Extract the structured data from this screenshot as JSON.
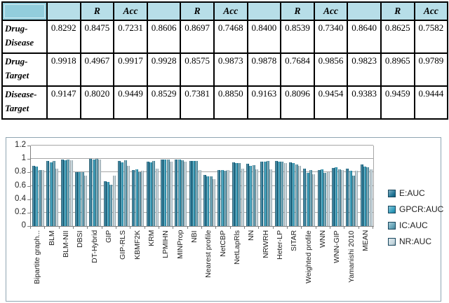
{
  "table": {
    "header": [
      "",
      "",
      "R",
      "Acc",
      "",
      "R",
      "Acc",
      "",
      "R",
      "Acc",
      "",
      "R",
      "Acc"
    ],
    "header_fill": "#B7DEE8",
    "corner_fill": "#92CDDC",
    "rows": [
      {
        "label": "Drug-\nDisease",
        "values": [
          "0.8292",
          "0.8475",
          "0.7231",
          "0.8606",
          "0.8697",
          "0.7468",
          "0.8400",
          "0.8539",
          "0.7340",
          "0.8640",
          "0.8625",
          "0.7582"
        ]
      },
      {
        "label": "Drug-\nTarget",
        "values": [
          "0.9918",
          "0.4967",
          "0.9917",
          "0.9928",
          "0.8575",
          "0.9873",
          "0.9878",
          "0.7684",
          "0.9856",
          "0.9823",
          "0.8965",
          "0.9789"
        ]
      },
      {
        "label": "Disease-\nTarget",
        "values": [
          "0.9147",
          "0.8020",
          "0.9449",
          "0.8529",
          "0.7381",
          "0.8850",
          "0.9163",
          "0.8096",
          "0.9454",
          "0.9383",
          "0.9459",
          "0.9444"
        ]
      }
    ]
  },
  "chart_data": {
    "type": "bar",
    "title": "",
    "xlabel": "",
    "ylabel": "",
    "ylim": [
      0,
      1.2
    ],
    "yticks": [
      0,
      0.2,
      0.4,
      0.6,
      0.8,
      1,
      1.2
    ],
    "grid": true,
    "legend_position": "right",
    "categories": [
      "Bipartite graph...",
      "BLM",
      "BLM-NII",
      "DBSI",
      "DT-Hybrid",
      "GIP",
      "GIP-RLS",
      "KBMF2K",
      "KRM",
      "LPMIHN",
      "MINProp",
      "NBI",
      "Nearest profile",
      "NetCBP",
      "NetLapRls",
      "NN",
      "NRWRH",
      "Heter-LP",
      "SITAR",
      "Weighted profile",
      "WNN",
      "WNN-GIP",
      "Yamanishi 2010",
      "MEAN"
    ],
    "series": [
      {
        "name": "E:AUC",
        "color": "#1C7293",
        "values": [
          0.9,
          0.97,
          0.99,
          0.8,
          1.0,
          0.67,
          0.97,
          0.84,
          0.96,
          0.99,
          0.99,
          0.97,
          0.76,
          0.83,
          0.95,
          0.93,
          0.96,
          0.97,
          0.95,
          0.86,
          0.83,
          0.87,
          0.86,
          0.92
        ]
      },
      {
        "name": "GPCR:AUC",
        "color": "#2E9BBC",
        "values": [
          0.89,
          0.95,
          0.98,
          0.8,
          0.99,
          0.66,
          0.95,
          0.85,
          0.95,
          0.99,
          0.99,
          0.97,
          0.74,
          0.83,
          0.94,
          0.9,
          0.96,
          0.96,
          0.94,
          0.79,
          0.85,
          0.88,
          0.82,
          0.89
        ]
      },
      {
        "name": "IC:AUC",
        "color": "#5FA0B5",
        "values": [
          0.84,
          0.97,
          0.99,
          0.8,
          1.0,
          0.62,
          0.98,
          0.8,
          0.97,
          0.99,
          0.98,
          0.97,
          0.74,
          0.82,
          0.94,
          0.91,
          0.97,
          0.96,
          0.92,
          0.83,
          0.79,
          0.85,
          0.75,
          0.88
        ]
      },
      {
        "name": "NR:AUC",
        "color": "#C4D6DE",
        "values": [
          0.84,
          0.86,
          0.98,
          0.75,
          0.99,
          0.75,
          0.9,
          0.82,
          0.86,
          0.96,
          0.96,
          0.83,
          0.7,
          0.84,
          0.86,
          0.85,
          0.85,
          0.94,
          0.9,
          0.77,
          0.8,
          0.84,
          0.82,
          0.85
        ]
      }
    ]
  }
}
